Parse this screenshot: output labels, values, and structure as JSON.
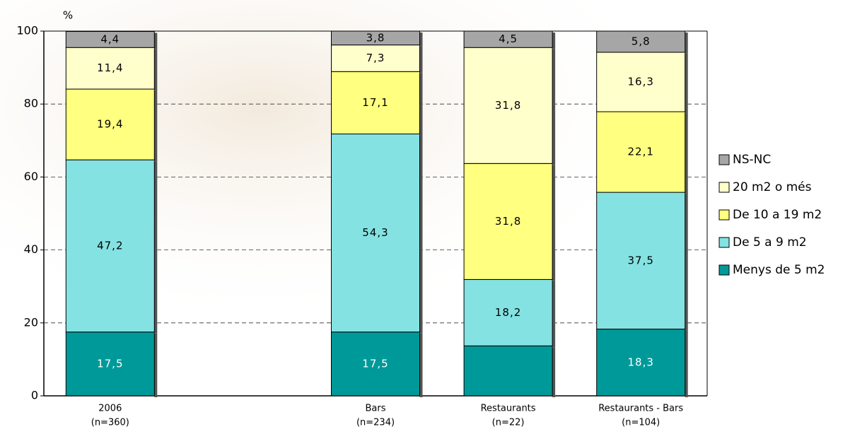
{
  "chart_data": {
    "type": "stacked-bar",
    "y_label": "%",
    "categories": [
      [
        "2006",
        "(n=360)"
      ],
      null,
      [
        "Bars",
        "(n=234)"
      ],
      [
        "Restaurants",
        "(n=22)"
      ],
      [
        "Restaurants - Bars",
        "(n=104)"
      ]
    ],
    "series": [
      {
        "name": "Menys de 5 m2",
        "color": "#009999",
        "label_color": "#ffffff",
        "values": [
          17.5,
          null,
          17.5,
          13.7,
          18.3
        ],
        "value_labels": [
          "17,5",
          null,
          "17,5",
          null,
          "18,3"
        ]
      },
      {
        "name": "De 5 a 9 m2",
        "color": "#85e2e2",
        "label_color": "#000000",
        "values": [
          47.2,
          null,
          54.3,
          18.2,
          37.5
        ],
        "value_labels": [
          "47,2",
          null,
          "54,3",
          "18,2",
          "37,5"
        ]
      },
      {
        "name": "De 10 a 19 m2",
        "color": "#ffff80",
        "label_color": "#000000",
        "values": [
          19.4,
          null,
          17.1,
          31.8,
          22.1
        ],
        "value_labels": [
          "19,4",
          null,
          "17,1",
          "31,8",
          "22,1"
        ]
      },
      {
        "name": "20 m2 o més",
        "color": "#ffffcc",
        "label_color": "#000000",
        "values": [
          11.4,
          null,
          7.3,
          31.8,
          16.3
        ],
        "value_labels": [
          "11,4",
          null,
          "7,3",
          "31,8",
          "16,3"
        ]
      },
      {
        "name": "NS-NC",
        "color": "#a6a6a6",
        "label_color": "#000000",
        "values": [
          4.4,
          null,
          3.8,
          4.5,
          5.8
        ],
        "value_labels": [
          "4,4",
          null,
          "3,8",
          "4,5",
          "5,8"
        ]
      }
    ],
    "ylim": [
      0,
      100
    ],
    "yticks": [
      0,
      20,
      40,
      60,
      80,
      100
    ],
    "grid": true,
    "legend": "right"
  }
}
